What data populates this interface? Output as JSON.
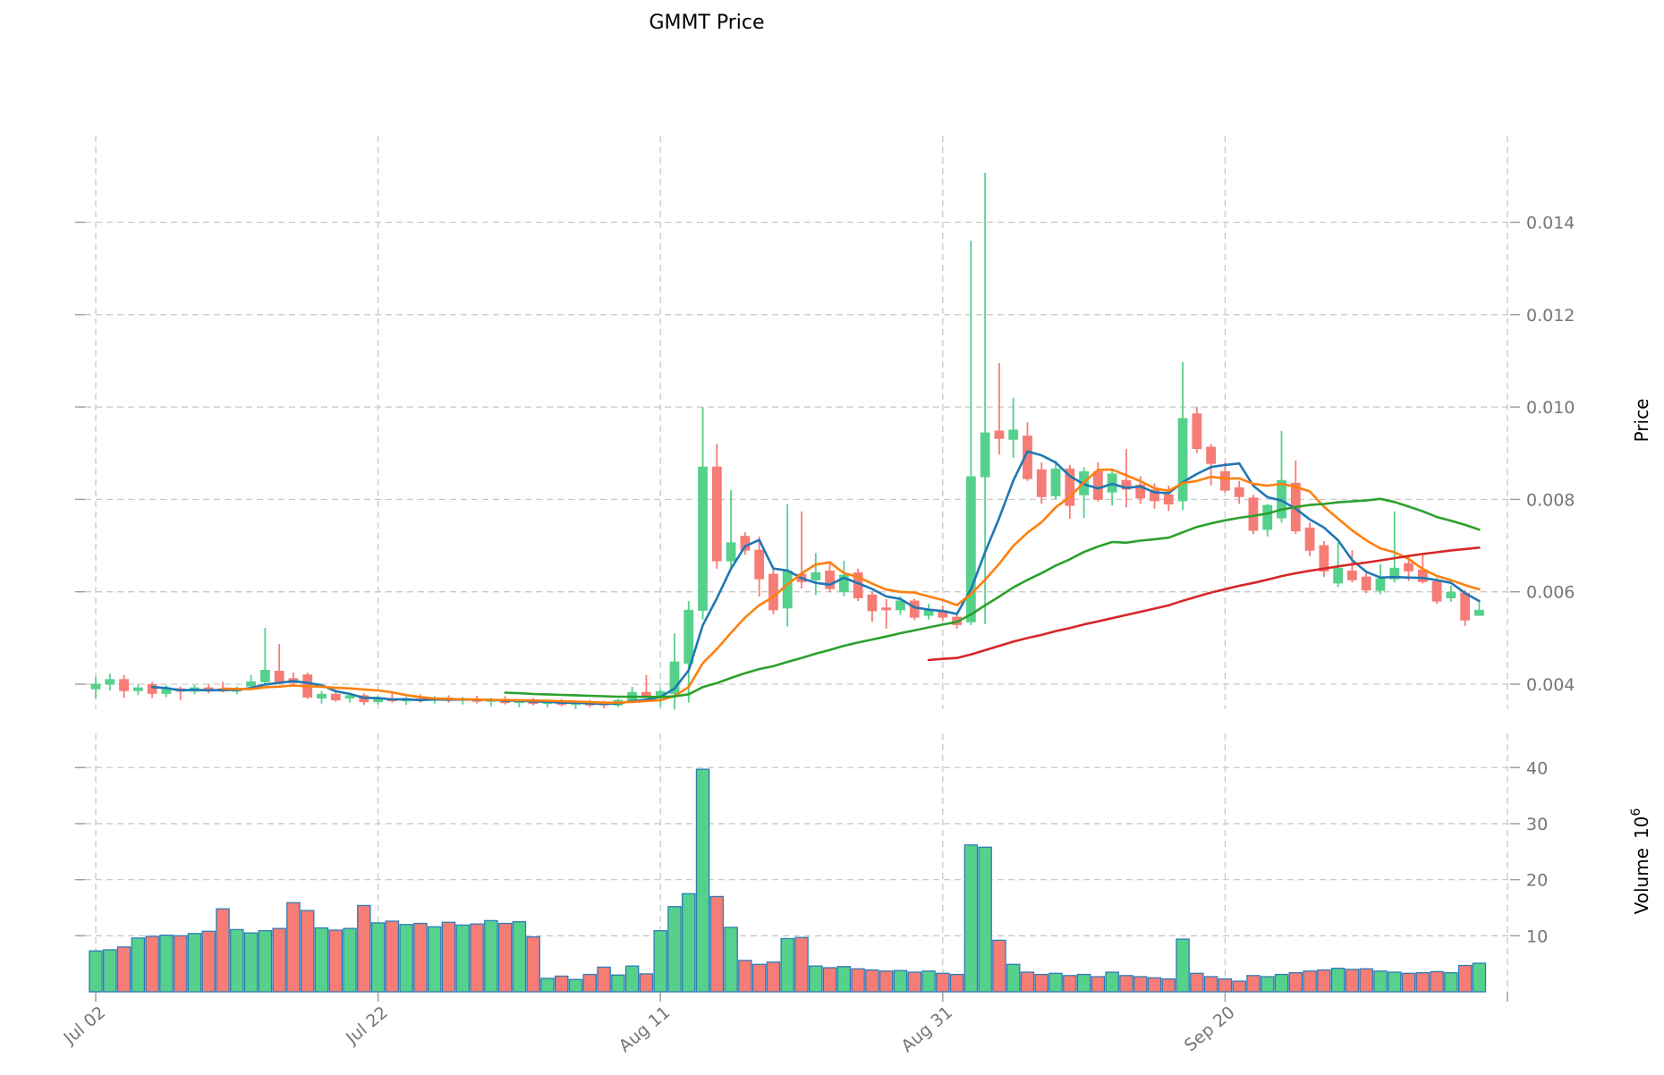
{
  "title": "GMMT Price",
  "axes": {
    "price_label": "Price",
    "volume_label": "Volume",
    "volume_scale_base": "10",
    "volume_scale_exp": "6",
    "price_ticks": [
      "0.004",
      "0.006",
      "0.008",
      "0.010",
      "0.012",
      "0.014"
    ],
    "volume_ticks": [
      "10",
      "20",
      "30",
      "40"
    ],
    "x_ticks": [
      "Jul 02",
      "Jul 22",
      "Aug 11",
      "Aug 31",
      "Sep 20"
    ]
  },
  "colors": {
    "up": "#55d18b",
    "down": "#f67c76",
    "volume_edge": "#2f7bb8",
    "grid": "#c9c9c9",
    "tick_text": "#767676",
    "ma5": "#1f77b4",
    "ma10": "#ff7f0e",
    "ma30": "#2ca02c",
    "ma60": "#d62728"
  },
  "chart_data": {
    "type": "candlestick+volume",
    "title": "GMMT Price",
    "ylabel_price": "Price",
    "ylabel_volume": "Volume 10^6",
    "price_tick_values": [
      0.004,
      0.006,
      0.008,
      0.01,
      0.012,
      0.014
    ],
    "volume_tick_values": [
      10,
      20,
      30,
      40
    ],
    "x_tick_day_indices": [
      0,
      20,
      40,
      60,
      80
    ],
    "extra_grid_day_index": 100,
    "volume_unit": 1000000,
    "moving_averages": [
      {
        "window": 5,
        "color_key": "ma5"
      },
      {
        "window": 10,
        "color_key": "ma10"
      },
      {
        "window": 30,
        "color_key": "ma30"
      },
      {
        "window": 60,
        "color_key": "ma60"
      }
    ],
    "candles": [
      [
        "Jul 02",
        0.0039,
        0.00415,
        0.0037,
        0.004,
        7.3
      ],
      [
        "Jul 03",
        0.004,
        0.00423,
        0.00386,
        0.0041,
        7.5
      ],
      [
        "Jul 04",
        0.0041,
        0.0042,
        0.0037,
        0.00386,
        8.0
      ],
      [
        "Jul 05",
        0.00386,
        0.004,
        0.00376,
        0.00392,
        9.6
      ],
      [
        "Jul 06",
        0.00399,
        0.00405,
        0.0037,
        0.0038,
        9.9
      ],
      [
        "Jul 07",
        0.0038,
        0.00398,
        0.00372,
        0.0039,
        10.1
      ],
      [
        "Jul 08",
        0.0039,
        0.00395,
        0.00365,
        0.00385,
        10.0
      ],
      [
        "Jul 09",
        0.00385,
        0.00398,
        0.00378,
        0.00392,
        10.4
      ],
      [
        "Jul 10",
        0.00392,
        0.004,
        0.0038,
        0.00386,
        10.8
      ],
      [
        "Jul 11",
        0.0039,
        0.00405,
        0.00382,
        0.00385,
        14.8
      ],
      [
        "Jul 12",
        0.00385,
        0.00395,
        0.00378,
        0.0039,
        11.1
      ],
      [
        "Jul 13",
        0.00396,
        0.0042,
        0.00392,
        0.00405,
        10.5
      ],
      [
        "Jul 14",
        0.00405,
        0.00522,
        0.004,
        0.0043,
        10.9
      ],
      [
        "Jul 15",
        0.00428,
        0.00487,
        0.004,
        0.00405,
        11.3
      ],
      [
        "Jul 16",
        0.00412,
        0.00425,
        0.00398,
        0.00403,
        15.9
      ],
      [
        "Jul 17",
        0.0042,
        0.00425,
        0.00368,
        0.00372,
        14.5
      ],
      [
        "Jul 18",
        0.0037,
        0.00385,
        0.00358,
        0.00378,
        11.4
      ],
      [
        "Jul 19",
        0.00378,
        0.00388,
        0.00362,
        0.00366,
        11.0
      ],
      [
        "Jul 20",
        0.0037,
        0.00382,
        0.0036,
        0.00375,
        11.3
      ],
      [
        "Jul 21",
        0.00375,
        0.0038,
        0.00355,
        0.00362,
        15.4
      ],
      [
        "Jul 22",
        0.00362,
        0.00375,
        0.00356,
        0.00368,
        12.3
      ],
      [
        "Jul 23",
        0.00368,
        0.0038,
        0.0036,
        0.00364,
        12.6
      ],
      [
        "Jul 24",
        0.00364,
        0.00372,
        0.00355,
        0.00368,
        12.0
      ],
      [
        "Jul 25",
        0.00368,
        0.00378,
        0.0036,
        0.00365,
        12.2
      ],
      [
        "Jul 26",
        0.00365,
        0.00374,
        0.00358,
        0.0037,
        11.6
      ],
      [
        "Jul 27",
        0.0037,
        0.00376,
        0.0036,
        0.00365,
        12.4
      ],
      [
        "Jul 28",
        0.00365,
        0.00372,
        0.00356,
        0.00368,
        11.9
      ],
      [
        "Jul 29",
        0.00368,
        0.00375,
        0.00358,
        0.00363,
        12.1
      ],
      [
        "Jul 30",
        0.00363,
        0.0037,
        0.00352,
        0.00366,
        12.7
      ],
      [
        "Jul 31",
        0.00366,
        0.00374,
        0.00356,
        0.0036,
        12.2
      ],
      [
        "Aug 01",
        0.0036,
        0.00368,
        0.0035,
        0.00364,
        12.5
      ],
      [
        "Aug 02",
        0.00364,
        0.0037,
        0.00354,
        0.00358,
        9.8
      ],
      [
        "Aug 03",
        0.00358,
        0.00366,
        0.0035,
        0.00362,
        2.4
      ],
      [
        "Aug 04",
        0.00362,
        0.00368,
        0.00352,
        0.00356,
        2.8
      ],
      [
        "Aug 05",
        0.00356,
        0.00362,
        0.00346,
        0.0036,
        2.2
      ],
      [
        "Aug 06",
        0.0036,
        0.00366,
        0.0035,
        0.00355,
        3.1
      ],
      [
        "Aug 07",
        0.0036,
        0.00364,
        0.00348,
        0.00355,
        4.4
      ],
      [
        "Aug 08",
        0.00355,
        0.00368,
        0.0035,
        0.00365,
        3.0
      ],
      [
        "Aug 09",
        0.00365,
        0.00394,
        0.0036,
        0.00382,
        4.6
      ],
      [
        "Aug 10",
        0.00382,
        0.0042,
        0.0037,
        0.00375,
        3.2
      ],
      [
        "Aug 11",
        0.00375,
        0.0039,
        0.00351,
        0.00384,
        10.9
      ],
      [
        "Aug 12",
        0.0038,
        0.0051,
        0.00345,
        0.00448,
        15.2
      ],
      [
        "Aug 13",
        0.00445,
        0.0058,
        0.0036,
        0.0056,
        17.5
      ],
      [
        "Aug 14",
        0.0056,
        0.01,
        0.0054,
        0.0087,
        39.7
      ],
      [
        "Aug 15",
        0.0087,
        0.0092,
        0.0065,
        0.00667,
        17.0
      ],
      [
        "Aug 16",
        0.00667,
        0.0082,
        0.0065,
        0.00706,
        11.5
      ],
      [
        "Aug 17",
        0.0072,
        0.00729,
        0.0068,
        0.0069,
        5.6
      ],
      [
        "Aug 18",
        0.0069,
        0.0072,
        0.0059,
        0.00628,
        4.9
      ],
      [
        "Aug 19",
        0.00638,
        0.0065,
        0.00551,
        0.00561,
        5.3
      ],
      [
        "Aug 20",
        0.00565,
        0.0079,
        0.00525,
        0.00645,
        9.5
      ],
      [
        "Aug 21",
        0.00638,
        0.00774,
        0.00607,
        0.00622,
        9.7
      ],
      [
        "Aug 22",
        0.00626,
        0.00684,
        0.00593,
        0.00641,
        4.6
      ],
      [
        "Aug 23",
        0.00645,
        0.00665,
        0.006,
        0.00607,
        4.3
      ],
      [
        "Aug 24",
        0.006,
        0.00667,
        0.0059,
        0.00636,
        4.5
      ],
      [
        "Aug 25",
        0.00641,
        0.0065,
        0.0058,
        0.00587,
        4.1
      ],
      [
        "Aug 26",
        0.00593,
        0.006,
        0.00535,
        0.00559,
        3.9
      ],
      [
        "Aug 27",
        0.00565,
        0.00584,
        0.0052,
        0.00561,
        3.7
      ],
      [
        "Aug 28",
        0.00561,
        0.0059,
        0.0055,
        0.0058,
        3.8
      ],
      [
        "Aug 29",
        0.0058,
        0.00585,
        0.00539,
        0.00545,
        3.5
      ],
      [
        "Aug 30",
        0.00549,
        0.00574,
        0.0054,
        0.00561,
        3.7
      ],
      [
        "Aug 31",
        0.00559,
        0.0057,
        0.00538,
        0.00545,
        3.3
      ],
      [
        "Sep 01",
        0.00545,
        0.00552,
        0.0052,
        0.00529,
        3.1
      ],
      [
        "Sep 02",
        0.00535,
        0.0136,
        0.00528,
        0.00849,
        26.2
      ],
      [
        "Sep 03",
        0.00849,
        0.01507,
        0.0053,
        0.00944,
        25.8
      ],
      [
        "Sep 04",
        0.00948,
        0.01095,
        0.00897,
        0.00932,
        9.2
      ],
      [
        "Sep 05",
        0.0093,
        0.0102,
        0.0089,
        0.0095,
        4.9
      ],
      [
        "Sep 06",
        0.00937,
        0.00967,
        0.0084,
        0.00845,
        3.5
      ],
      [
        "Sep 07",
        0.00864,
        0.0088,
        0.0079,
        0.00806,
        3.1
      ],
      [
        "Sep 08",
        0.00808,
        0.00884,
        0.008,
        0.00866,
        3.3
      ],
      [
        "Sep 09",
        0.00866,
        0.00875,
        0.00758,
        0.00787,
        2.9
      ],
      [
        "Sep 10",
        0.0081,
        0.0087,
        0.0076,
        0.0086,
        3.1
      ],
      [
        "Sep 11",
        0.0086,
        0.0088,
        0.00795,
        0.008,
        2.7
      ],
      [
        "Sep 12",
        0.00816,
        0.00865,
        0.00787,
        0.00855,
        3.5
      ],
      [
        "Sep 13",
        0.00841,
        0.00909,
        0.00783,
        0.00822,
        2.9
      ],
      [
        "Sep 14",
        0.00831,
        0.0085,
        0.0079,
        0.00803,
        2.7
      ],
      [
        "Sep 15",
        0.0082,
        0.00835,
        0.0078,
        0.00797,
        2.5
      ],
      [
        "Sep 16",
        0.0081,
        0.0083,
        0.00775,
        0.0079,
        2.3
      ],
      [
        "Sep 17",
        0.00797,
        0.01097,
        0.00777,
        0.00975,
        9.4
      ],
      [
        "Sep 18",
        0.00985,
        0.01,
        0.009,
        0.0091,
        3.3
      ],
      [
        "Sep 19",
        0.00913,
        0.0092,
        0.0083,
        0.00878,
        2.7
      ],
      [
        "Sep 20",
        0.0086,
        0.0088,
        0.00815,
        0.0082,
        2.3
      ],
      [
        "Sep 21",
        0.00825,
        0.0084,
        0.0079,
        0.00806,
        1.9
      ],
      [
        "Sep 22",
        0.00803,
        0.0081,
        0.00725,
        0.00733,
        2.9
      ],
      [
        "Sep 23",
        0.00735,
        0.0079,
        0.0072,
        0.00787,
        2.7
      ],
      [
        "Sep 24",
        0.0076,
        0.00948,
        0.0075,
        0.00841,
        3.1
      ],
      [
        "Sep 25",
        0.00835,
        0.00884,
        0.00725,
        0.00732,
        3.4
      ],
      [
        "Sep 26",
        0.00738,
        0.0075,
        0.00677,
        0.0069,
        3.7
      ],
      [
        "Sep 27",
        0.007,
        0.0071,
        0.00632,
        0.00645,
        3.9
      ],
      [
        "Sep 28",
        0.00619,
        0.00706,
        0.0061,
        0.00651,
        4.2
      ],
      [
        "Sep 29",
        0.00645,
        0.0069,
        0.0062,
        0.00626,
        4.0
      ],
      [
        "Sep 30",
        0.00632,
        0.0064,
        0.00597,
        0.00604,
        4.1
      ],
      [
        "Oct 01",
        0.00603,
        0.0066,
        0.00595,
        0.00628,
        3.7
      ],
      [
        "Oct 02",
        0.00628,
        0.00774,
        0.0062,
        0.00651,
        3.5
      ],
      [
        "Oct 03",
        0.00661,
        0.0068,
        0.00623,
        0.00645,
        3.3
      ],
      [
        "Oct 04",
        0.00647,
        0.00684,
        0.00618,
        0.00622,
        3.4
      ],
      [
        "Oct 05",
        0.00622,
        0.0063,
        0.00574,
        0.0058,
        3.6
      ],
      [
        "Oct 06",
        0.00587,
        0.00613,
        0.00578,
        0.00599,
        3.4
      ],
      [
        "Oct 07",
        0.00597,
        0.00604,
        0.00526,
        0.00539,
        4.7
      ],
      [
        "Oct 08",
        0.00549,
        0.00578,
        0.00549,
        0.0056,
        5.1
      ]
    ]
  }
}
